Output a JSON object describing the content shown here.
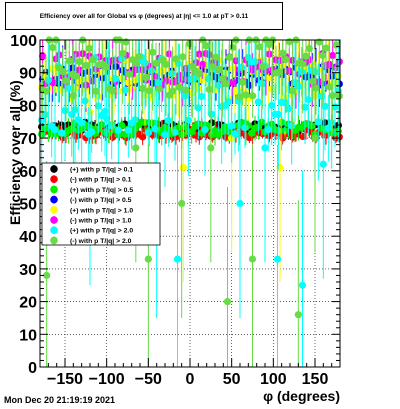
{
  "chart_data": {
    "type": "scatter",
    "title": "Efficiency over all for Global vs φ (degrees) at |η| <= 1.0 at pT > 0.11",
    "xlabel": "φ (degrees)",
    "ylabel": "Efficiency over all (%)",
    "xlim": [
      -180,
      180
    ],
    "ylim": [
      0,
      100
    ],
    "x_ticks": [
      "−150",
      "−100",
      "−50",
      "0",
      "50",
      "100",
      "150"
    ],
    "x_tick_values": [
      -150,
      -100,
      -50,
      0,
      50,
      100,
      150
    ],
    "y_ticks": [
      "0",
      "10",
      "20",
      "30",
      "40",
      "50",
      "60",
      "70",
      "80",
      "90",
      "100"
    ],
    "y_tick_values": [
      0,
      10,
      20,
      30,
      40,
      50,
      60,
      70,
      80,
      90,
      100
    ],
    "grid": true,
    "legend_position": "left",
    "series": [
      {
        "name": "(+) with pT/|q| > 0.1",
        "color": "#000000",
        "level": 73.5,
        "spread": 1.5,
        "err": 2,
        "outliers": []
      },
      {
        "name": "(-) with pT/|q| > 0.1",
        "color": "#ff0000",
        "level": 71.5,
        "spread": 1.5,
        "err": 2,
        "outliers": []
      },
      {
        "name": "(+) with pT/|q| > 0.5",
        "color": "#00ee00",
        "level": 73,
        "spread": 2,
        "err": 3,
        "outliers": []
      },
      {
        "name": "(-) with pT/|q| > 0.5",
        "color": "#0000ff",
        "level": 89,
        "spread": 3,
        "err": 5,
        "outliers": []
      },
      {
        "name": "(+) with pT/|q| > 1.0",
        "color": "#ffff00",
        "level": 88,
        "spread": 6,
        "err": 8,
        "outliers": [
          [
            -8,
            61
          ],
          [
            108,
            61
          ],
          [
            50,
            70
          ],
          [
            -120,
            78
          ]
        ]
      },
      {
        "name": "(-) with pT/|q| > 1.0",
        "color": "#ff00ff",
        "level": 91,
        "spread": 5,
        "err": 6,
        "outliers": []
      },
      {
        "name": "(+) with pT/|q| > 2.0",
        "color": "#00ffff",
        "level": 83,
        "spread": 12,
        "err": 12,
        "outliers": [
          [
            -15,
            33
          ],
          [
            -40,
            50
          ],
          [
            105,
            33
          ],
          [
            135,
            25
          ],
          [
            -120,
            60
          ],
          [
            -100,
            76
          ],
          [
            60,
            50
          ],
          [
            90,
            67
          ],
          [
            160,
            62
          ]
        ]
      },
      {
        "name": "(-) with pT/|q| > 2.0",
        "color": "#66dd44",
        "level": 92,
        "spread": 10,
        "err": 12,
        "outliers": [
          [
            -172,
            28
          ],
          [
            -50,
            33
          ],
          [
            45,
            20
          ],
          [
            75,
            33
          ],
          [
            130,
            16
          ],
          [
            -10,
            50
          ],
          [
            -65,
            67
          ],
          [
            25,
            67
          ],
          [
            -140,
            83
          ],
          [
            150,
            70
          ]
        ]
      }
    ]
  },
  "legend": {
    "items": [
      {
        "label": "(+) with p T/|q| > 0.1",
        "color": "#000000"
      },
      {
        "label": "(-) with p T/|q| > 0.1",
        "color": "#ff0000"
      },
      {
        "label": "(+) with p T/|q| > 0.5",
        "color": "#00ee00"
      },
      {
        "label": "(-) with p T/|q| > 0.5",
        "color": "#0000ff"
      },
      {
        "label": "(+) with p T/|q| > 1.0",
        "color": "#ffff00"
      },
      {
        "label": "(-) with p T/|q| > 1.0",
        "color": "#ff00ff"
      },
      {
        "label": "(+) with p T/|q| > 2.0",
        "color": "#00ffff"
      },
      {
        "label": "(-) with p T/|q| > 2.0",
        "color": "#66dd44"
      }
    ]
  },
  "header": {
    "title": "Efficiency over all for Global vs φ (degrees) at |η| <= 1.0 at pT > 0.11"
  },
  "footer": {
    "timestamp": "Mon Dec 20 21:19:19 2021"
  }
}
